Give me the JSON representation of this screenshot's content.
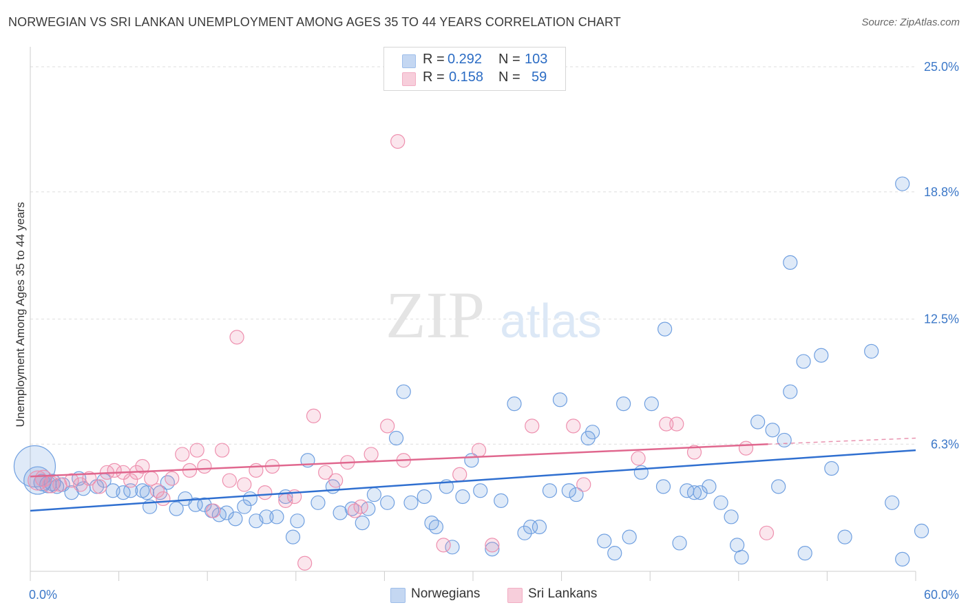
{
  "header": {
    "title": "NORWEGIAN VS SRI LANKAN UNEMPLOYMENT AMONG AGES 35 TO 44 YEARS CORRELATION CHART",
    "source": "Source: ZipAtlas.com"
  },
  "watermark": {
    "zip": "ZIP",
    "atlas": "atlas"
  },
  "legend": {
    "rows": [
      {
        "r_label": "R =",
        "r_value": "0.292",
        "n_label": "N =",
        "n_value": "103",
        "color": "#9dbdea"
      },
      {
        "r_label": "R =",
        "r_value": "0.158",
        "n_label": "N =",
        "n_value": "59",
        "color": "#f2adc3"
      }
    ]
  },
  "bottom_legend": [
    {
      "label": "Norwegians",
      "color": "#9dbdea"
    },
    {
      "label": "Sri Lankans",
      "color": "#f2adc3"
    }
  ],
  "chart_data": {
    "type": "scatter",
    "title": "NORWEGIAN VS SRI LANKAN UNEMPLOYMENT AMONG AGES 35 TO 44 YEARS CORRELATION CHART",
    "xlabel": "",
    "ylabel": "Unemployment Among Ages 35 to 44 years",
    "xlim": [
      0,
      60
    ],
    "ylim": [
      0,
      25
    ],
    "x_tick_labels": [
      "0.0%",
      "60.0%"
    ],
    "y_ticks": [
      6.3,
      12.5,
      18.8,
      25.0
    ],
    "y_tick_labels": [
      "6.3%",
      "12.5%",
      "18.8%",
      "25.0%"
    ],
    "grid": "horizontal dashed",
    "legend_position": "top-center",
    "series": [
      {
        "name": "Norwegians",
        "color": "#6f9fe0",
        "trend": {
          "x": [
            0,
            60
          ],
          "y": [
            3.0,
            6.0
          ]
        },
        "points": [
          [
            0.3,
            5.2,
            30
          ],
          [
            0.5,
            4.5,
            20
          ],
          [
            0.8,
            4.4,
            12
          ],
          [
            1.2,
            4.3,
            12
          ],
          [
            1.5,
            4.4,
            12
          ],
          [
            1.8,
            4.2,
            10
          ],
          [
            2.2,
            4.3,
            10
          ],
          [
            2.8,
            3.9,
            10
          ],
          [
            3.3,
            4.6,
            10
          ],
          [
            3.6,
            4.1,
            10
          ],
          [
            4.5,
            4.2,
            10
          ],
          [
            5.0,
            4.5,
            10
          ],
          [
            5.6,
            4.0,
            10
          ],
          [
            6.3,
            3.9,
            10
          ],
          [
            6.8,
            4.0,
            10
          ],
          [
            7.6,
            4.0,
            10
          ],
          [
            7.9,
            3.9,
            10
          ],
          [
            8.1,
            3.2,
            10
          ],
          [
            8.8,
            3.9,
            10
          ],
          [
            9.3,
            4.4,
            10
          ],
          [
            9.9,
            3.1,
            10
          ],
          [
            10.5,
            3.6,
            10
          ],
          [
            11.2,
            3.3,
            10
          ],
          [
            11.8,
            3.3,
            10
          ],
          [
            12.3,
            3.0,
            10
          ],
          [
            12.8,
            2.8,
            10
          ],
          [
            13.3,
            2.9,
            10
          ],
          [
            13.9,
            2.6,
            10
          ],
          [
            14.5,
            3.2,
            10
          ],
          [
            14.9,
            3.6,
            10
          ],
          [
            15.3,
            2.5,
            10
          ],
          [
            16.0,
            2.7,
            10
          ],
          [
            16.7,
            2.7,
            10
          ],
          [
            17.3,
            3.7,
            10
          ],
          [
            17.8,
            1.7,
            10
          ],
          [
            18.1,
            2.5,
            10
          ],
          [
            18.8,
            5.5,
            10
          ],
          [
            19.5,
            3.4,
            10
          ],
          [
            20.5,
            4.2,
            10
          ],
          [
            21.0,
            2.9,
            10
          ],
          [
            21.8,
            3.1,
            10
          ],
          [
            22.5,
            2.4,
            10
          ],
          [
            22.9,
            3.1,
            10
          ],
          [
            23.3,
            3.8,
            10
          ],
          [
            24.2,
            3.4,
            10
          ],
          [
            24.8,
            6.6,
            10
          ],
          [
            25.3,
            8.9,
            10
          ],
          [
            25.8,
            3.4,
            10
          ],
          [
            26.7,
            3.7,
            10
          ],
          [
            27.2,
            2.4,
            10
          ],
          [
            27.5,
            2.2,
            10
          ],
          [
            28.2,
            4.2,
            10
          ],
          [
            28.6,
            1.2,
            10
          ],
          [
            29.3,
            3.7,
            10
          ],
          [
            29.9,
            5.5,
            10
          ],
          [
            30.5,
            4.0,
            10
          ],
          [
            31.3,
            1.1,
            10
          ],
          [
            31.9,
            3.5,
            10
          ],
          [
            32.8,
            8.3,
            10
          ],
          [
            33.5,
            1.9,
            10
          ],
          [
            33.9,
            2.2,
            10
          ],
          [
            34.5,
            2.2,
            10
          ],
          [
            35.2,
            4.0,
            10
          ],
          [
            35.9,
            8.5,
            10
          ],
          [
            36.5,
            4.0,
            10
          ],
          [
            37.0,
            3.8,
            10
          ],
          [
            37.8,
            6.6,
            10
          ],
          [
            38.1,
            6.9,
            10
          ],
          [
            38.9,
            1.5,
            10
          ],
          [
            39.6,
            0.9,
            10
          ],
          [
            40.2,
            8.3,
            10
          ],
          [
            40.6,
            1.7,
            10
          ],
          [
            41.4,
            4.9,
            10
          ],
          [
            42.1,
            8.3,
            10
          ],
          [
            42.9,
            4.2,
            10
          ],
          [
            43.0,
            12.0,
            10
          ],
          [
            44.0,
            1.4,
            10
          ],
          [
            44.5,
            4.0,
            10
          ],
          [
            45.0,
            3.9,
            10
          ],
          [
            45.4,
            3.9,
            10
          ],
          [
            46.0,
            4.2,
            10
          ],
          [
            46.8,
            3.4,
            10
          ],
          [
            47.5,
            2.7,
            10
          ],
          [
            47.9,
            1.3,
            10
          ],
          [
            48.2,
            0.7,
            10
          ],
          [
            49.3,
            7.4,
            10
          ],
          [
            50.3,
            7.0,
            10
          ],
          [
            50.7,
            4.2,
            10
          ],
          [
            51.1,
            6.5,
            10
          ],
          [
            51.5,
            8.9,
            10
          ],
          [
            51.5,
            15.3,
            10
          ],
          [
            52.5,
            0.9,
            10
          ],
          [
            52.4,
            10.4,
            10
          ],
          [
            53.6,
            10.7,
            10
          ],
          [
            54.3,
            5.1,
            10
          ],
          [
            55.2,
            1.7,
            10
          ],
          [
            57.0,
            10.9,
            10
          ],
          [
            58.4,
            3.4,
            10
          ],
          [
            59.1,
            0.6,
            10
          ],
          [
            59.1,
            19.2,
            10
          ],
          [
            60.4,
            2.0,
            10
          ]
        ]
      },
      {
        "name": "Sri Lankans",
        "color": "#ee8fae",
        "trend": {
          "x": [
            0,
            50
          ],
          "y": [
            4.7,
            6.3
          ]
        },
        "trend_dashed": {
          "x": [
            50,
            60
          ],
          "y": [
            6.3,
            6.6
          ]
        },
        "points": [
          [
            0.5,
            4.5,
            14
          ],
          [
            0.9,
            4.6,
            12
          ],
          [
            1.4,
            4.3,
            12
          ],
          [
            2.0,
            4.3,
            10
          ],
          [
            2.8,
            4.5,
            10
          ],
          [
            3.4,
            4.3,
            10
          ],
          [
            4.0,
            4.6,
            10
          ],
          [
            4.7,
            4.2,
            10
          ],
          [
            5.2,
            4.9,
            10
          ],
          [
            5.7,
            5.0,
            10
          ],
          [
            6.3,
            4.9,
            10
          ],
          [
            6.8,
            4.5,
            10
          ],
          [
            7.2,
            4.9,
            10
          ],
          [
            7.6,
            5.2,
            10
          ],
          [
            8.2,
            4.6,
            10
          ],
          [
            8.6,
            4.0,
            10
          ],
          [
            9.0,
            3.6,
            10
          ],
          [
            9.6,
            4.6,
            10
          ],
          [
            10.3,
            5.8,
            10
          ],
          [
            10.8,
            5.0,
            10
          ],
          [
            11.3,
            6.0,
            10
          ],
          [
            11.8,
            5.2,
            10
          ],
          [
            12.4,
            3.0,
            10
          ],
          [
            13.0,
            6.0,
            10
          ],
          [
            13.5,
            4.5,
            10
          ],
          [
            14.0,
            11.6,
            10
          ],
          [
            14.5,
            4.3,
            10
          ],
          [
            15.3,
            5.0,
            10
          ],
          [
            15.9,
            3.9,
            10
          ],
          [
            16.4,
            5.2,
            10
          ],
          [
            17.3,
            3.5,
            10
          ],
          [
            17.9,
            3.7,
            10
          ],
          [
            18.6,
            0.4,
            10
          ],
          [
            19.2,
            7.7,
            10
          ],
          [
            20.0,
            4.9,
            10
          ],
          [
            20.7,
            4.5,
            10
          ],
          [
            21.5,
            5.4,
            10
          ],
          [
            22.0,
            3.0,
            10
          ],
          [
            22.4,
            3.2,
            10
          ],
          [
            23.1,
            5.8,
            10
          ],
          [
            24.2,
            7.2,
            10
          ],
          [
            24.9,
            21.3,
            10
          ],
          [
            25.3,
            5.5,
            10
          ],
          [
            28.0,
            1.3,
            10
          ],
          [
            29.1,
            4.8,
            10
          ],
          [
            30.4,
            6.0,
            10
          ],
          [
            31.3,
            1.3,
            10
          ],
          [
            34.0,
            7.2,
            10
          ],
          [
            36.8,
            7.2,
            10
          ],
          [
            37.5,
            4.3,
            10
          ],
          [
            41.2,
            5.6,
            10
          ],
          [
            43.1,
            7.3,
            10
          ],
          [
            43.8,
            7.3,
            10
          ],
          [
            45.0,
            5.9,
            10
          ],
          [
            48.5,
            6.1,
            10
          ],
          [
            49.9,
            1.9,
            10
          ]
        ]
      }
    ]
  }
}
